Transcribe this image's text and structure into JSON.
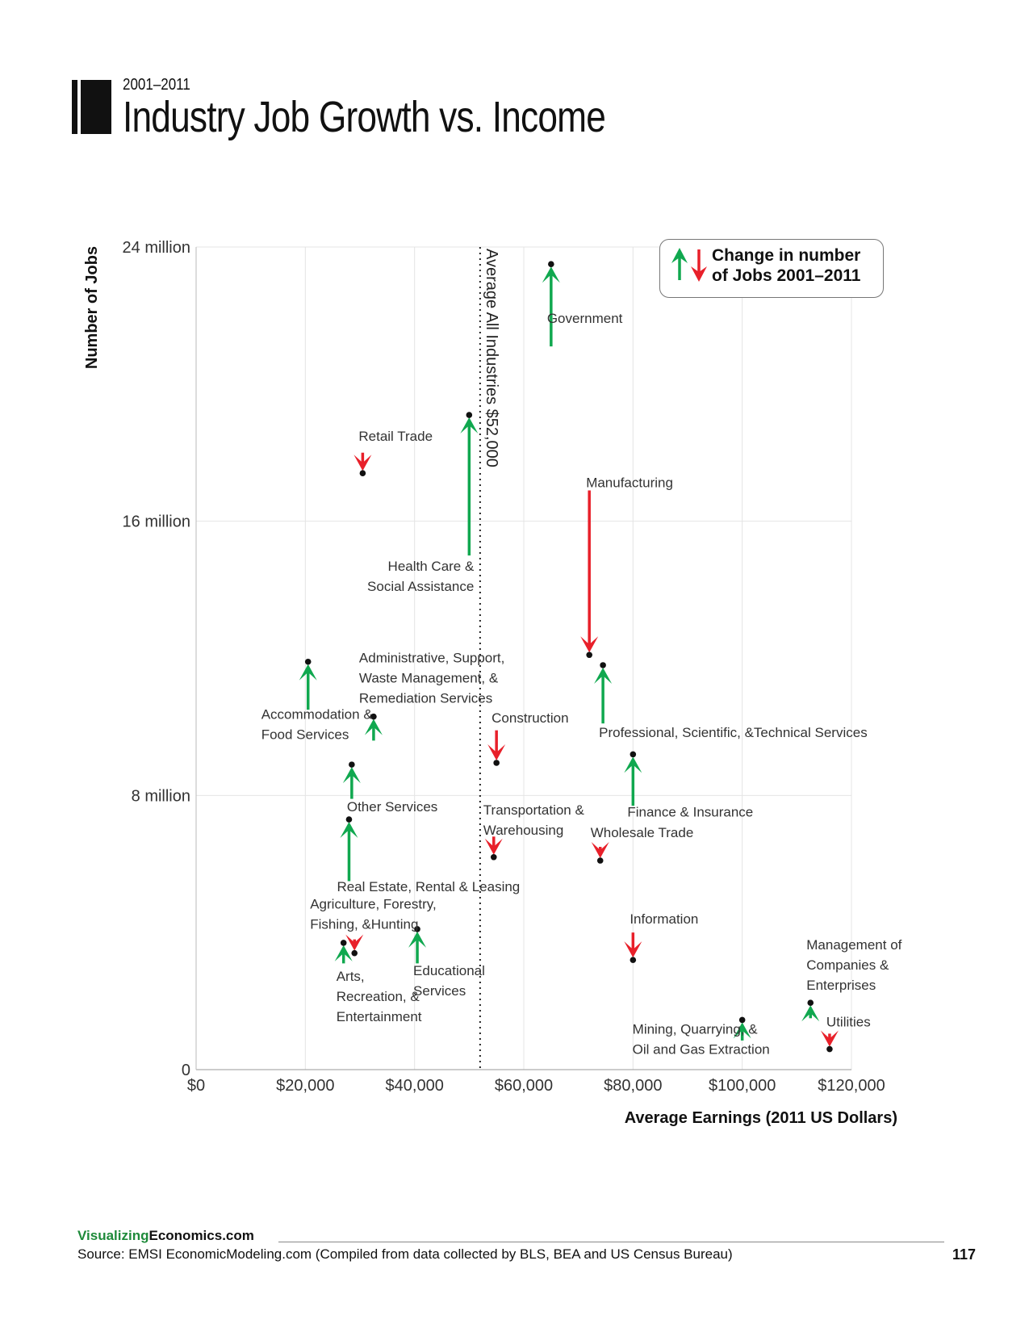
{
  "header": {
    "subtitle": "2001–2011",
    "title": "Industry Job Growth vs. Income"
  },
  "legend": {
    "line1": "Change in number",
    "line2": "of Jobs 2001–2011"
  },
  "footer": {
    "brand_green": "Visualizing",
    "brand_black": "Economics.com",
    "source": "Source: EMSI EconomicModeling.com (Compiled from data collected by BLS, BEA and US Census Bureau)",
    "page_number": "117"
  },
  "colors": {
    "growth": "#10a84f",
    "decline": "#e8202a",
    "grid": "#e4e4e4"
  },
  "chart_data": {
    "type": "scatter",
    "title": "Industry Job Growth vs. Income",
    "subtitle": "2001–2011",
    "xlabel": "Average Earnings (2011 US Dollars)",
    "ylabel": "Number of Jobs",
    "xlim": [
      0,
      120000
    ],
    "ylim": [
      0,
      24000000
    ],
    "x_ticks": [
      0,
      20000,
      40000,
      60000,
      80000,
      100000,
      120000
    ],
    "x_tick_labels": [
      "$0",
      "$20,000",
      "$40,000",
      "$60,000",
      "$80,000",
      "$100,000",
      "$120,000"
    ],
    "y_ticks": [
      0,
      8000000,
      16000000,
      24000000
    ],
    "y_tick_labels": [
      "0",
      "8 million",
      "16 million",
      "24 million"
    ],
    "grid": true,
    "legend_position": "top-right",
    "reference_line": {
      "x": 52000,
      "label": "Average All Industries $52,000"
    },
    "series": [
      {
        "name": "Government",
        "label_lines": [
          "Government"
        ],
        "x": 65000,
        "jobs_2011": 23500000,
        "jobs_2001": 21100000,
        "direction": "up"
      },
      {
        "name": "Health Care & Social Assistance",
        "label_lines": [
          "Health Care &",
          "Social Assistance"
        ],
        "x": 50000,
        "jobs_2011": 19100000,
        "jobs_2001": 15000000,
        "direction": "up"
      },
      {
        "name": "Retail Trade",
        "label_lines": [
          "Retail Trade"
        ],
        "x": 30500,
        "jobs_2011": 17400000,
        "jobs_2001": 18000000,
        "direction": "down"
      },
      {
        "name": "Manufacturing",
        "label_lines": [
          "Manufacturing"
        ],
        "x": 72000,
        "jobs_2011": 12100000,
        "jobs_2001": 16900000,
        "direction": "down"
      },
      {
        "name": "Professional, Scientific, &Technical Services",
        "label_lines": [
          "Professional, Scientific, &Technical Services"
        ],
        "x": 74500,
        "jobs_2011": 11800000,
        "jobs_2001": 10100000,
        "direction": "up"
      },
      {
        "name": "Accommodation & Food Services",
        "label_lines": [
          "Accommodation &",
          "Food Services"
        ],
        "x": 20500,
        "jobs_2011": 11900000,
        "jobs_2001": 10500000,
        "direction": "up"
      },
      {
        "name": "Administrative, Support, Waste Management, & Remediation Services",
        "label_lines": [
          "Administrative, Support,",
          "Waste Management, &",
          "Remediation Services"
        ],
        "x": 32500,
        "jobs_2011": 10300000,
        "jobs_2001": 9600000,
        "direction": "up"
      },
      {
        "name": "Construction",
        "label_lines": [
          "Construction"
        ],
        "x": 55000,
        "jobs_2011": 8950000,
        "jobs_2001": 9900000,
        "direction": "down"
      },
      {
        "name": "Finance & Insurance",
        "label_lines": [
          "Finance & Insurance"
        ],
        "x": 80000,
        "jobs_2011": 9200000,
        "jobs_2001": 7700000,
        "direction": "up"
      },
      {
        "name": "Other Services",
        "label_lines": [
          "Other Services"
        ],
        "x": 28500,
        "jobs_2011": 8900000,
        "jobs_2001": 7900000,
        "direction": "up"
      },
      {
        "name": "Real Estate, Rental & Leasing",
        "label_lines": [
          "Real Estate, Rental & Leasing"
        ],
        "x": 28000,
        "jobs_2011": 7300000,
        "jobs_2001": 5500000,
        "direction": "up"
      },
      {
        "name": "Transportation & Warehousing",
        "label_lines": [
          "Transportation &",
          "Warehousing"
        ],
        "x": 54500,
        "jobs_2011": 6200000,
        "jobs_2001": 6800000,
        "direction": "down"
      },
      {
        "name": "Wholesale Trade",
        "label_lines": [
          "Wholesale Trade"
        ],
        "x": 74000,
        "jobs_2011": 6100000,
        "jobs_2001": 6500000,
        "direction": "down"
      },
      {
        "name": "Information",
        "label_lines": [
          "Information"
        ],
        "x": 80000,
        "jobs_2011": 3200000,
        "jobs_2001": 4000000,
        "direction": "down"
      },
      {
        "name": "Agriculture, Forestry, Fishing, &Hunting",
        "label_lines": [
          "Agriculture, Forestry,",
          "Fishing, &Hunting"
        ],
        "x": 29000,
        "jobs_2011": 3400000,
        "jobs_2001": 3800000,
        "direction": "down"
      },
      {
        "name": "Arts, Recreation, & Entertainment",
        "label_lines": [
          "Arts,",
          "Recreation, &",
          "Entertainment"
        ],
        "x": 27000,
        "jobs_2011": 3700000,
        "jobs_2001": 3100000,
        "direction": "up"
      },
      {
        "name": "Educational Services",
        "label_lines": [
          "Educational",
          "Services"
        ],
        "x": 40500,
        "jobs_2011": 4100000,
        "jobs_2001": 3100000,
        "direction": "up"
      },
      {
        "name": "Management of Companies & Enterprises",
        "label_lines": [
          "Management of",
          "Companies &",
          "Enterprises"
        ],
        "x": 112500,
        "jobs_2011": 1950000,
        "jobs_2001": 1500000,
        "direction": "up"
      },
      {
        "name": "Mining, Quarrying, & Oil and Gas Extraction",
        "label_lines": [
          "Mining, Quarrying, &",
          "Oil and Gas Extraction"
        ],
        "x": 100000,
        "jobs_2011": 1450000,
        "jobs_2001": 850000,
        "direction": "up"
      },
      {
        "name": "Utilities",
        "label_lines": [
          "Utilities"
        ],
        "x": 116000,
        "jobs_2011": 600000,
        "jobs_2001": 1050000,
        "direction": "down"
      }
    ]
  }
}
